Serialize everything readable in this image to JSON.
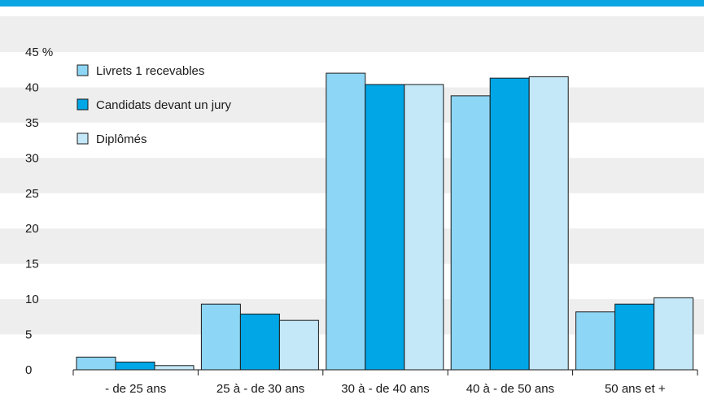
{
  "colors": {
    "accent_bar": "#0aa5e2",
    "band_light": "#eeeeee",
    "band_white": "#ffffff",
    "series": [
      "#8ed6f5",
      "#00a6e6",
      "#c4e8f8"
    ],
    "stroke": "#1a1a1a"
  },
  "chart_data": {
    "type": "bar",
    "unit_label": "45 %",
    "categories": [
      "- de 25 ans",
      "25 à - de 30 ans",
      "30 à - de 40 ans",
      "40 à - de 50 ans",
      "50 ans et +"
    ],
    "series": [
      {
        "name": "Livrets 1 recevables",
        "values": [
          1.8,
          9.3,
          42.0,
          38.8,
          8.2
        ]
      },
      {
        "name": "Candidats devant un jury",
        "values": [
          1.1,
          7.9,
          40.4,
          41.3,
          9.3
        ]
      },
      {
        "name": "Diplômés",
        "values": [
          0.6,
          7.0,
          40.4,
          41.5,
          10.2
        ]
      }
    ],
    "ylim": [
      0,
      45
    ],
    "yticks": [
      0,
      5,
      10,
      15,
      20,
      25,
      30,
      35,
      40,
      45
    ],
    "ytick_labels": [
      "0",
      "5",
      "10",
      "15",
      "20",
      "25",
      "30",
      "35",
      "40",
      "45 %"
    ],
    "grid": "alternating horizontal bands",
    "legend": "top-left"
  }
}
